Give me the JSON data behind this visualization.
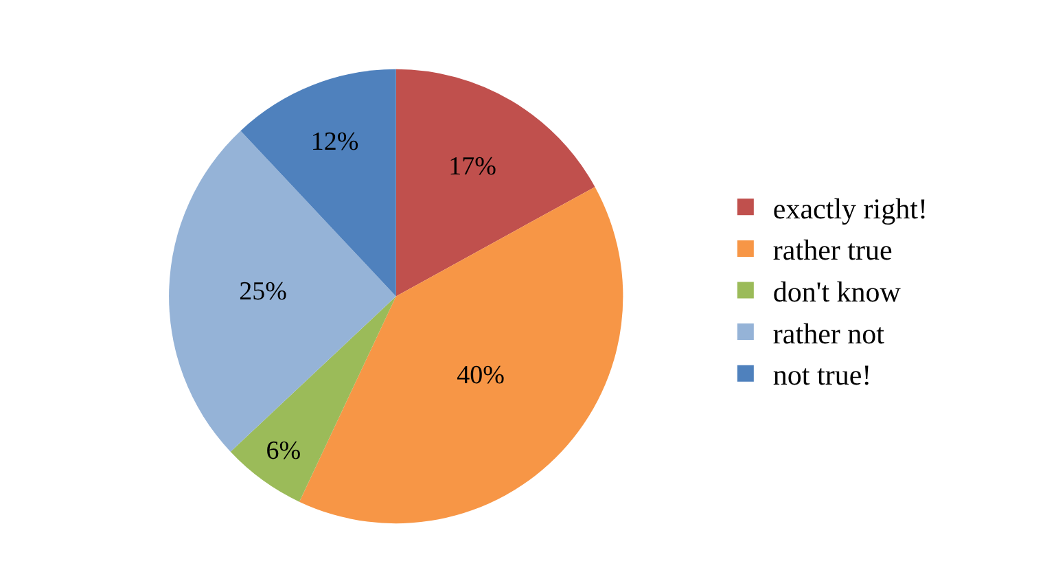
{
  "chart_data": {
    "type": "pie",
    "categories": [
      "exactly right!",
      "rather true",
      "don't know",
      "rather not",
      "not true!"
    ],
    "values": [
      17,
      40,
      6,
      25,
      12
    ],
    "colors": [
      "#c0504d",
      "#f79646",
      "#9bbb59",
      "#95b3d7",
      "#4f81bd"
    ],
    "value_labels": [
      "17%",
      "40%",
      "6%",
      "25%",
      "12%"
    ],
    "legend": "right"
  }
}
